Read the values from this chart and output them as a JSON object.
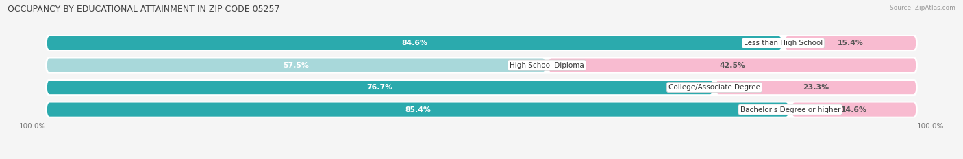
{
  "title": "OCCUPANCY BY EDUCATIONAL ATTAINMENT IN ZIP CODE 05257",
  "source": "Source: ZipAtlas.com",
  "categories": [
    "Less than High School",
    "High School Diploma",
    "College/Associate Degree",
    "Bachelor's Degree or higher"
  ],
  "owner_pct": [
    84.6,
    57.5,
    76.7,
    85.4
  ],
  "renter_pct": [
    15.4,
    42.5,
    23.3,
    14.6
  ],
  "owner_color_strong": "#2BAAAD",
  "owner_color_light": "#A8D8DA",
  "renter_color_strong": "#F06292",
  "renter_color_light": "#F8BBD0",
  "owner_threshold": 70,
  "bg_color": "#F5F5F5",
  "row_bg": "#EAEAEA",
  "title_fontsize": 9,
  "label_fontsize": 7.8,
  "tick_fontsize": 7.5
}
